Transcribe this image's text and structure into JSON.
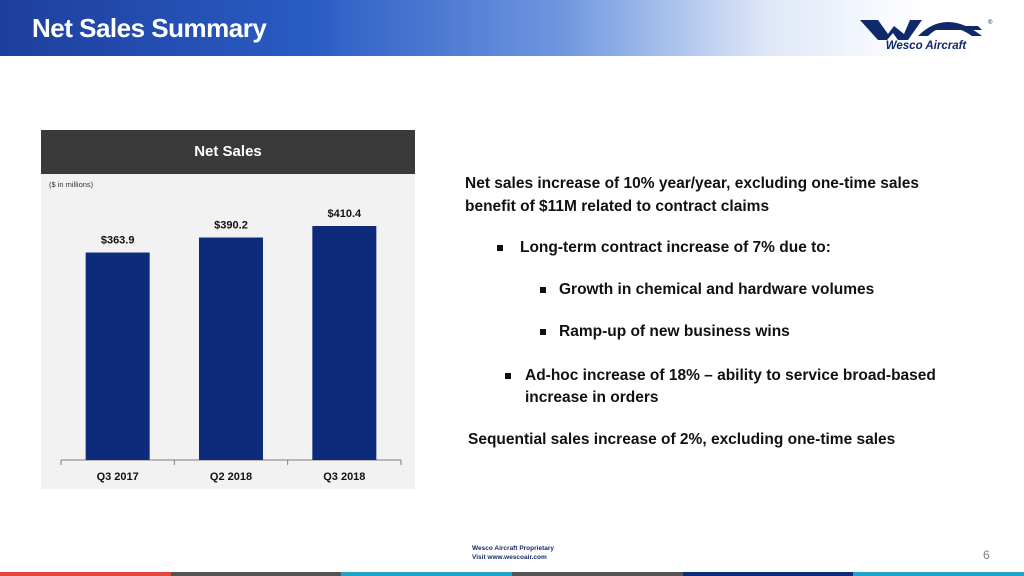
{
  "header": {
    "title": "Net Sales Summary",
    "logo_text": "Wesco Aircraft",
    "logo_mark": "®"
  },
  "chart_data": {
    "type": "bar",
    "title": "Net Sales",
    "unit_note": "($ in millions)",
    "categories": [
      "Q3 2017",
      "Q2 2018",
      "Q3 2018"
    ],
    "values": [
      363.9,
      390.2,
      410.4
    ],
    "labels": [
      "$363.9",
      "$390.2",
      "$410.4"
    ],
    "bar_color": "#0e2a7a",
    "xlabel": "",
    "ylabel": ""
  },
  "content": {
    "headline_line1": "Net sales increase of 10% year/year, excluding one-time sales",
    "headline_line2": "benefit of $11M related to contract claims",
    "bullet1": "Long-term contract increase of 7% due to:",
    "sub1": "Growth in chemical and hardware volumes",
    "sub2": "Ramp-up of new business wins",
    "bullet2_line1": "Ad-hoc increase of 18% – ability to service broad-based",
    "bullet2_line2": "increase in orders",
    "sequential": "Sequential sales increase of 2%, excluding one-time sales"
  },
  "footer": {
    "proprietary": "Wesco Aircraft Proprietary",
    "visit": "Visit www.wescoair.com",
    "page_number": "6",
    "bar_colors": [
      "#e4473c",
      "#545454",
      "#1fa3c9",
      "#545454",
      "#0e2a7a",
      "#1fa3c9"
    ]
  }
}
